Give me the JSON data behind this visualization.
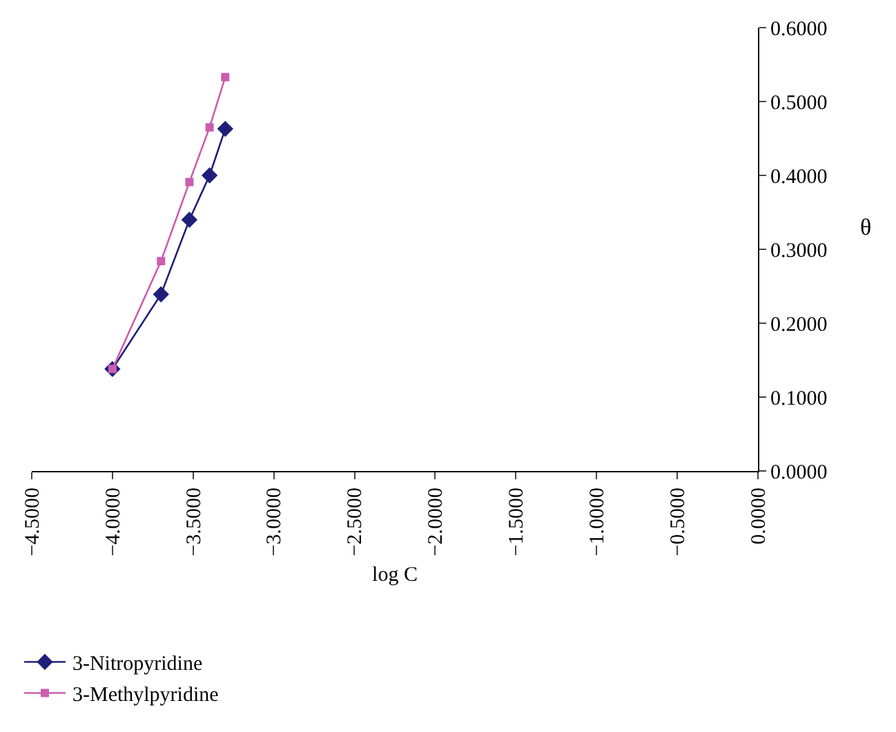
{
  "chart_data": {
    "type": "line",
    "xlabel": "log C",
    "ylabel": "θ",
    "xlim": [
      -4.5,
      0
    ],
    "xticks": [
      {
        "value": -4.5,
        "label": "−4.5000"
      },
      {
        "value": -4,
        "label": "−4.0000"
      },
      {
        "value": -3.5,
        "label": "−3.5000"
      },
      {
        "value": -3,
        "label": "−3.0000"
      },
      {
        "value": -2.5,
        "label": "−2.5000"
      },
      {
        "value": -2,
        "label": "−2.0000"
      },
      {
        "value": -1.5,
        "label": "−1.5000"
      },
      {
        "value": -1,
        "label": "−1.0000"
      },
      {
        "value": -0.5,
        "label": "−0.5000"
      },
      {
        "value": 0,
        "label": "0.0000"
      }
    ],
    "ylim": [
      0,
      0.6
    ],
    "yticks": [
      {
        "value": 0,
        "label": "0.0000"
      },
      {
        "value": 0.1,
        "label": "0.1000"
      },
      {
        "value": 0.2,
        "label": "0.2000"
      },
      {
        "value": 0.3,
        "label": "0.3000"
      },
      {
        "value": 0.4,
        "label": "0.4000"
      },
      {
        "value": 0.5,
        "label": "0.5000"
      },
      {
        "value": 0.6,
        "label": "0.6000"
      }
    ],
    "x": [
      -4.0,
      -3.699,
      -3.523,
      -3.398,
      -3.301
    ],
    "series": [
      {
        "name": "3-Nitropyridine",
        "color": "#1f1f7a",
        "marker": "diamond",
        "values": [
          0.138,
          0.239,
          0.34,
          0.4,
          0.463
        ]
      },
      {
        "name": "3-Methylpyridine",
        "color": "#cc5cb0",
        "marker": "square",
        "values": [
          0.138,
          0.284,
          0.391,
          0.465,
          0.533
        ]
      }
    ],
    "grid": false,
    "legend": "bottom left"
  }
}
